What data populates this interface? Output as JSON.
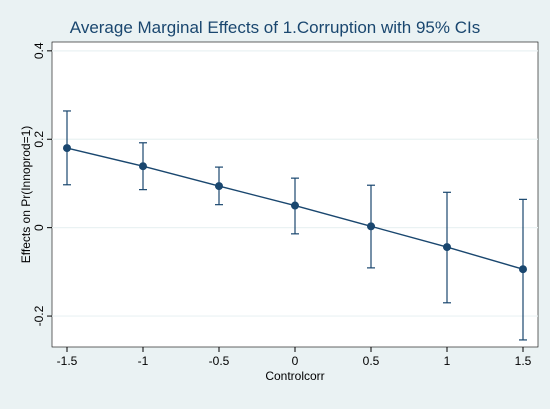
{
  "chart_data": {
    "type": "line",
    "title": "Average Marginal Effects of 1.Corruption with 95% CIs",
    "xlabel": "Controlcorr",
    "ylabel": "Effects on Pr(Innoprod=1)",
    "xlim": [
      -1.5,
      1.5
    ],
    "ylim": [
      -0.27,
      0.42
    ],
    "x_ticks": [
      -1.5,
      -1,
      -0.5,
      0,
      0.5,
      1,
      1.5
    ],
    "x_tick_labels": [
      "-1.5",
      "-1",
      "-0.5",
      "0",
      "0.5",
      "1",
      "1.5"
    ],
    "y_ticks": [
      -0.2,
      0,
      0.2,
      0.4
    ],
    "y_tick_labels": [
      "-0.2",
      "0",
      "0.2",
      "0.4"
    ],
    "grid": true,
    "series": [
      {
        "x": [
          -1.5,
          -1,
          -0.5,
          0,
          0.5,
          1,
          1.5
        ],
        "values": [
          0.18,
          0.139,
          0.094,
          0.05,
          0.003,
          -0.044,
          -0.094
        ],
        "ci_lower": [
          0.097,
          0.086,
          0.052,
          -0.014,
          -0.091,
          -0.17,
          -0.254
        ],
        "ci_upper": [
          0.264,
          0.192,
          0.137,
          0.112,
          0.096,
          0.08,
          0.064
        ]
      }
    ],
    "colors": {
      "line": "#1a476f",
      "marker": "#1a476f",
      "plot_background": "#ffffff",
      "outer_background": "#eaf2f3",
      "grid": "#eaf2f3"
    }
  }
}
